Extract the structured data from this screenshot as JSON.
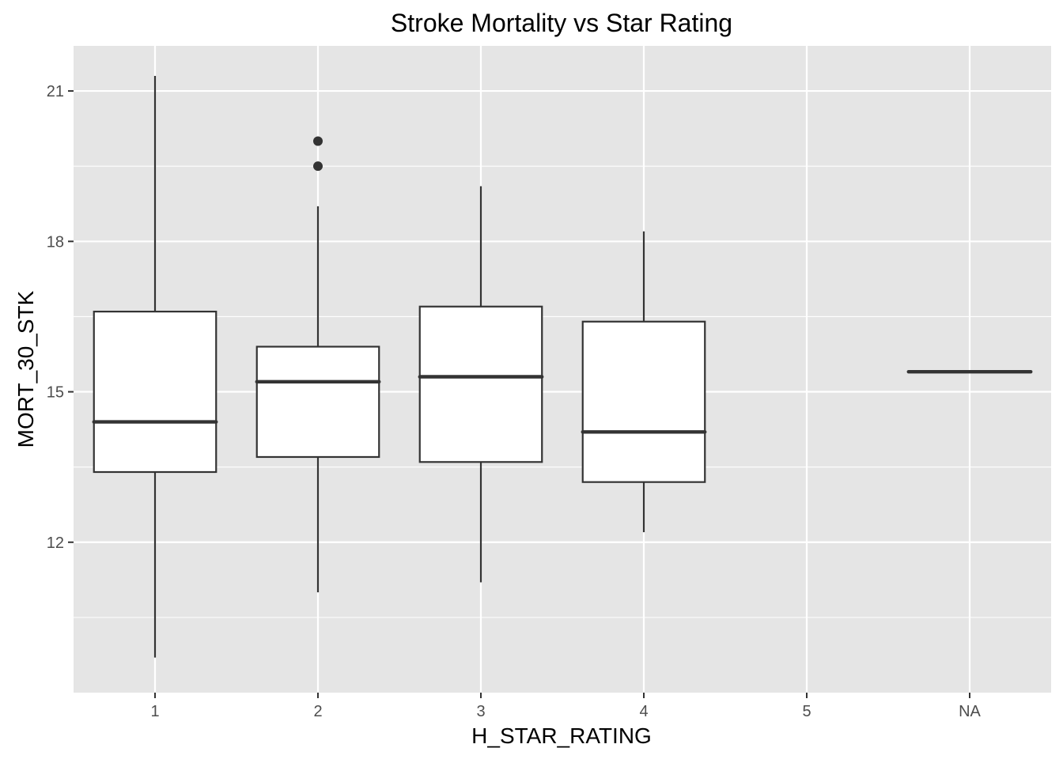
{
  "chart_data": {
    "type": "boxplot",
    "title": "Stroke Mortality vs Star Rating",
    "xlabel": "H_STAR_RATING",
    "ylabel": "MORT_30_STK",
    "categories": [
      "1",
      "2",
      "3",
      "4",
      "5",
      "NA"
    ],
    "ylim": [
      9.0,
      21.9
    ],
    "yticks": [
      12,
      15,
      18,
      21
    ],
    "grid": true,
    "legend": "none",
    "colors": {
      "panel": "#e5e5e5",
      "grid": "#ffffff",
      "box_fill": "#ffffff",
      "box_line": "#333333",
      "tick_label": "#4d4d4d"
    },
    "boxes": [
      {
        "category": "1",
        "whisker_low": 9.7,
        "q1": 13.4,
        "median": 14.4,
        "q3": 16.6,
        "whisker_high": 21.3,
        "outliers": []
      },
      {
        "category": "2",
        "whisker_low": 11.0,
        "q1": 13.7,
        "median": 15.2,
        "q3": 15.9,
        "whisker_high": 18.7,
        "outliers": [
          20.0,
          19.5
        ]
      },
      {
        "category": "3",
        "whisker_low": 11.2,
        "q1": 13.6,
        "median": 15.3,
        "q3": 16.7,
        "whisker_high": 19.1,
        "outliers": []
      },
      {
        "category": "4",
        "whisker_low": 12.2,
        "q1": 13.2,
        "median": 14.2,
        "q3": 16.4,
        "whisker_high": 18.2,
        "outliers": []
      },
      {
        "category": "NA",
        "whisker_low": 15.4,
        "q1": 15.4,
        "median": 15.4,
        "q3": 15.4,
        "whisker_high": 15.4,
        "outliers": []
      }
    ]
  }
}
